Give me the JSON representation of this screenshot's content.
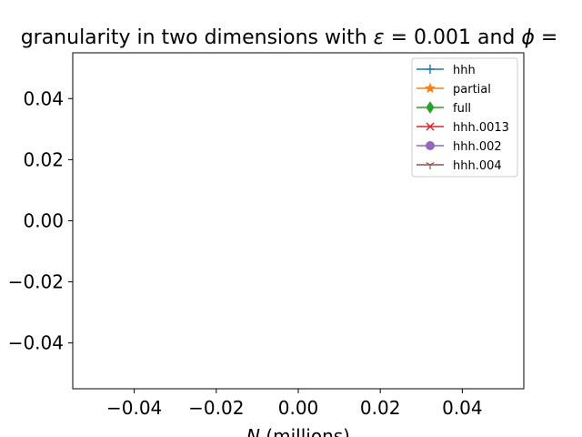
{
  "chart_data": {
    "type": "line",
    "title": "granularity in two dimensions with ε = 0.001 and ϕ =",
    "xlabel": "N (millions)",
    "ylabel": "",
    "xlim": [
      -0.055,
      0.055
    ],
    "ylim": [
      -0.055,
      0.055
    ],
    "xticks": [
      "−0.04",
      "−0.02",
      "0.00",
      "0.02",
      "0.04"
    ],
    "xtick_values": [
      -0.04,
      -0.02,
      0.0,
      0.02,
      0.04
    ],
    "yticks": [
      "0.04",
      "0.02",
      "0.00",
      "−0.02",
      "−0.04"
    ],
    "ytick_values": [
      0.04,
      0.02,
      0.0,
      -0.02,
      -0.04
    ],
    "grid": false,
    "legend_position": "upper right",
    "series": [
      {
        "name": "hhh",
        "color": "#1f77b4",
        "marker": "plus",
        "x": [],
        "y": []
      },
      {
        "name": "partial",
        "color": "#ff7f0e",
        "marker": "star",
        "x": [],
        "y": []
      },
      {
        "name": "full",
        "color": "#2ca02c",
        "marker": "thin-diamond",
        "x": [],
        "y": []
      },
      {
        "name": "hhh.0013",
        "color": "#d62728",
        "marker": "x",
        "x": [],
        "y": []
      },
      {
        "name": "hhh.002",
        "color": "#9467bd",
        "marker": "circle",
        "x": [],
        "y": []
      },
      {
        "name": "hhh.004",
        "color": "#8c564b",
        "marker": "tri-down",
        "x": [],
        "y": []
      }
    ]
  }
}
